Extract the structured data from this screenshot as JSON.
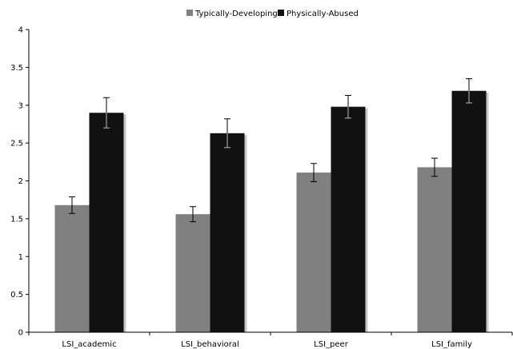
{
  "chart_data": {
    "type": "bar",
    "categories": [
      "LSI_academic",
      "LSI_behavioral",
      "LSI_peer",
      "LSI_family"
    ],
    "series": [
      {
        "name": "Typically-Developing",
        "color": "#808080",
        "values": [
          1.68,
          1.56,
          2.11,
          2.18
        ],
        "error": [
          0.11,
          0.1,
          0.12,
          0.12
        ]
      },
      {
        "name": "Physically-Abused",
        "color": "#111111",
        "values": [
          2.9,
          2.63,
          2.98,
          3.19
        ],
        "error": [
          0.2,
          0.19,
          0.15,
          0.16
        ]
      }
    ],
    "ylim": [
      0,
      4
    ],
    "yticks": [
      "0",
      "0.5",
      "1",
      "1.5",
      "2",
      "2.5",
      "3",
      "3.5",
      "4"
    ],
    "yticks_values": [
      0,
      0.5,
      1,
      1.5,
      2,
      2.5,
      3,
      3.5,
      4
    ],
    "grid": false,
    "legend_position": "top-center"
  }
}
